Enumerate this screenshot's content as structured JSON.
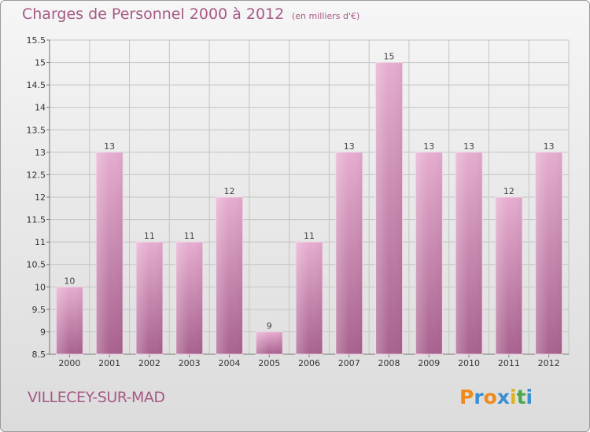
{
  "header": {
    "title": "Charges de Personnel 2000 à 2012",
    "subtitle": "(en milliers d'€)"
  },
  "footer": {
    "town": "VILLECEY-SUR-MAD",
    "logo_text": "Proxiti"
  },
  "colors": {
    "accent": "#a65a86",
    "bar_top": "#e6add0",
    "bar_bottom": "#a8628e",
    "logo_letters": [
      "#f08a1c",
      "#3a8fd0",
      "#f08a1c",
      "#3a8fd0",
      "#e0b020",
      "#4aa84a",
      "#3a8fd0"
    ]
  },
  "chart_data": {
    "type": "bar",
    "title": "Charges de Personnel 2000 à 2012",
    "subtitle": "(en milliers d'€)",
    "categories": [
      "2000",
      "2001",
      "2002",
      "2003",
      "2004",
      "2005",
      "2006",
      "2007",
      "2008",
      "2009",
      "2010",
      "2011",
      "2012"
    ],
    "values": [
      10,
      13,
      11,
      11,
      12,
      9,
      11,
      13,
      15,
      13,
      13,
      12,
      13
    ],
    "data_labels": [
      "10",
      "13",
      "11",
      "11",
      "12",
      "9",
      "11",
      "13",
      "15",
      "13",
      "13",
      "12",
      "13"
    ],
    "ylim": [
      8.5,
      15.5
    ],
    "yticks": [
      8.5,
      9,
      9.5,
      10,
      10.5,
      11,
      11.5,
      12,
      12.5,
      13,
      13.5,
      14,
      14.5,
      15,
      15.5
    ],
    "ytick_labels": [
      "8.5",
      "9",
      "9.5",
      "10",
      "10.5",
      "11",
      "11.5",
      "12",
      "12.5",
      "13",
      "13.5",
      "14",
      "14.5",
      "15",
      "15.5"
    ],
    "xlabel": "",
    "ylabel": "",
    "grid": true
  }
}
